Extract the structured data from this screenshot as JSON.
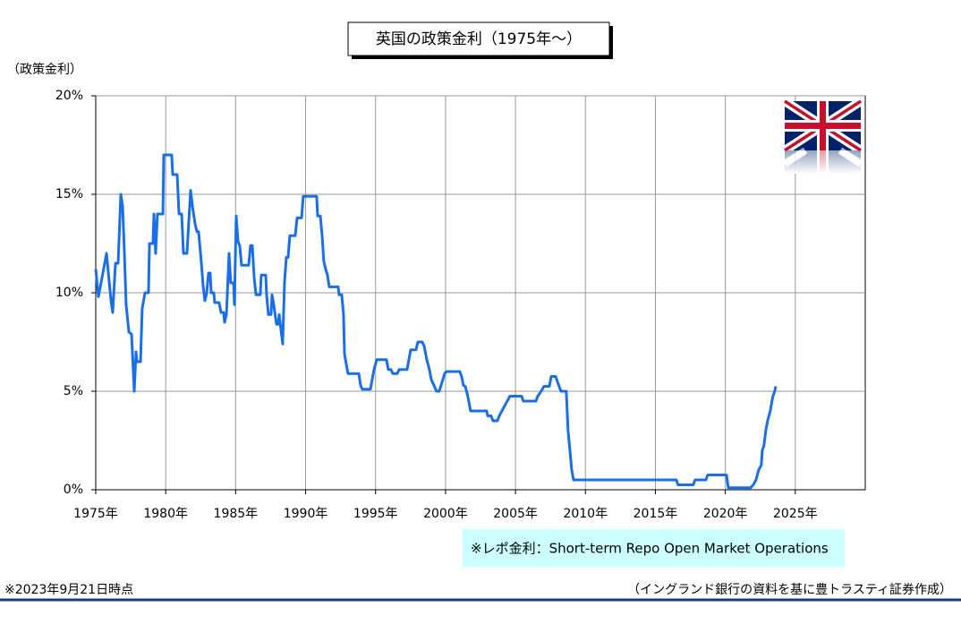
{
  "chart_data": {
    "type": "line",
    "title": "英国の政策金利（1975年～）",
    "y_label": "（政策金利）",
    "annotation": "※レポ金利：Short-term Repo Open Market Operations",
    "footnote": "※2023年9月21日時点",
    "source": "（イングランド銀行の資料を基に豊トラスティ証券作成）",
    "color": "#1a6fe8",
    "grid": true,
    "xlim": [
      1975,
      2030
    ],
    "xticks": [
      {
        "value": 1975,
        "label": "1975年"
      },
      {
        "value": 1980,
        "label": "1980年"
      },
      {
        "value": 1985,
        "label": "1985年"
      },
      {
        "value": 1990,
        "label": "1990年"
      },
      {
        "value": 1995,
        "label": "1995年"
      },
      {
        "value": 2000,
        "label": "2000年"
      },
      {
        "value": 2005,
        "label": "2005年"
      },
      {
        "value": 2010,
        "label": "2010年"
      },
      {
        "value": 2015,
        "label": "2015年"
      },
      {
        "value": 2020,
        "label": "2020年"
      },
      {
        "value": 2025,
        "label": "2025年"
      }
    ],
    "ylim": [
      0,
      20
    ],
    "yticks": [
      {
        "value": 0,
        "label": "0%"
      },
      {
        "value": 5,
        "label": "5%"
      },
      {
        "value": 10,
        "label": "10%"
      },
      {
        "value": 15,
        "label": "15%"
      },
      {
        "value": 20,
        "label": "20%"
      }
    ],
    "x": [
      1975.0,
      1975.19,
      1975.51,
      1975.77,
      1976.09,
      1976.21,
      1976.41,
      1976.6,
      1976.79,
      1976.92,
      1977.05,
      1977.17,
      1977.37,
      1977.56,
      1977.75,
      1977.88,
      1977.94,
      1978.2,
      1978.32,
      1978.52,
      1978.77,
      1978.84,
      1979.09,
      1979.16,
      1979.28,
      1979.41,
      1979.8,
      1979.86,
      1980.43,
      1980.5,
      1980.82,
      1980.95,
      1981.14,
      1981.27,
      1981.52,
      1981.78,
      1981.91,
      1982.1,
      1982.23,
      1982.35,
      1982.54,
      1982.67,
      1982.8,
      1982.93,
      1983.06,
      1983.18,
      1983.25,
      1983.44,
      1983.5,
      1983.82,
      1983.95,
      1984.14,
      1984.21,
      1984.34,
      1984.53,
      1984.65,
      1984.85,
      1984.91,
      1985.04,
      1985.17,
      1985.29,
      1985.42,
      1985.93,
      1986.06,
      1986.19,
      1986.32,
      1986.45,
      1986.76,
      1986.83,
      1987.15,
      1987.21,
      1987.34,
      1987.53,
      1987.6,
      1987.72,
      1987.92,
      1988.04,
      1988.11,
      1988.24,
      1988.36,
      1988.49,
      1988.62,
      1988.75,
      1988.87,
      1989.26,
      1989.39,
      1989.71,
      1989.83,
      1990.79,
      1990.86,
      1991.05,
      1991.18,
      1991.3,
      1991.43,
      1991.56,
      1991.69,
      1992.33,
      1992.39,
      1992.58,
      1992.71,
      1992.78,
      1992.9,
      1993.03,
      1993.8,
      1993.93,
      1994.05,
      1994.63,
      1994.76,
      1994.89,
      1995.08,
      1995.78,
      1995.91,
      1996.1,
      1996.23,
      1996.55,
      1996.68,
      1997.25,
      1997.38,
      1997.51,
      1997.89,
      1998.02,
      1998.34,
      1998.47,
      1998.66,
      1998.85,
      1998.98,
      1999.17,
      1999.36,
      1999.55,
      1999.68,
      1999.81,
      1999.94,
      2000.07,
      2001.02,
      2001.15,
      2001.28,
      2001.41,
      2001.54,
      2001.66,
      2001.79,
      2002.94,
      2003.01,
      2003.26,
      2003.39,
      2003.71,
      2003.84,
      2004.03,
      2004.22,
      2004.41,
      2004.6,
      2005.44,
      2005.56,
      2006.46,
      2006.59,
      2006.84,
      2007.03,
      2007.42,
      2007.55,
      2007.87,
      2007.99,
      2008.25,
      2008.63,
      2008.76,
      2008.89,
      2009.02,
      2009.15,
      2016.5,
      2016.62,
      2017.71,
      2017.84,
      2018.61,
      2018.74,
      2020.08,
      2020.21,
      2021.8,
      2022.0,
      2022.19,
      2022.38,
      2022.57,
      2022.64,
      2022.76,
      2022.89,
      2023.02,
      2023.21,
      2023.27,
      2023.4,
      2023.53,
      2023.6
    ],
    "values": [
      11.2,
      9.8,
      11.0,
      12.0,
      9.6,
      9.0,
      11.5,
      11.5,
      15.0,
      14.4,
      12.0,
      9.4,
      8.0,
      7.9,
      5.0,
      7.0,
      6.5,
      6.5,
      9.2,
      10.0,
      10.0,
      12.5,
      12.5,
      14.0,
      12.0,
      14.0,
      14.0,
      17.0,
      17.0,
      16.0,
      16.0,
      14.0,
      14.0,
      12.0,
      12.0,
      15.2,
      14.4,
      13.5,
      13.1,
      13.1,
      11.6,
      10.4,
      9.6,
      10.0,
      11.0,
      11.0,
      10.0,
      10.0,
      9.5,
      9.5,
      9.0,
      9.0,
      8.5,
      8.9,
      12.0,
      10.5,
      10.5,
      9.4,
      13.9,
      12.6,
      12.4,
      11.4,
      11.4,
      12.4,
      12.4,
      10.8,
      9.9,
      9.9,
      10.9,
      10.9,
      9.9,
      8.9,
      8.9,
      9.9,
      9.4,
      8.4,
      8.4,
      8.9,
      8.1,
      7.4,
      10.5,
      11.8,
      11.8,
      12.9,
      12.9,
      13.8,
      13.8,
      14.9,
      14.9,
      13.9,
      13.9,
      12.9,
      11.6,
      11.2,
      10.9,
      10.3,
      10.3,
      9.9,
      9.9,
      8.9,
      6.9,
      6.4,
      5.9,
      5.9,
      5.3,
      5.1,
      5.1,
      5.6,
      6.1,
      6.6,
      6.6,
      6.1,
      6.1,
      5.9,
      5.9,
      6.1,
      6.1,
      6.6,
      7.1,
      7.1,
      7.5,
      7.5,
      7.3,
      6.6,
      6.1,
      5.6,
      5.3,
      5.0,
      5.0,
      5.3,
      5.6,
      5.9,
      6.0,
      6.0,
      5.75,
      5.3,
      5.25,
      4.9,
      4.5,
      4.0,
      4.0,
      3.75,
      3.75,
      3.5,
      3.5,
      3.75,
      4.0,
      4.25,
      4.5,
      4.75,
      4.75,
      4.5,
      4.5,
      4.75,
      5.0,
      5.25,
      5.25,
      5.75,
      5.75,
      5.5,
      5.0,
      5.0,
      3.0,
      2.0,
      1.0,
      0.5,
      0.5,
      0.25,
      0.25,
      0.5,
      0.5,
      0.75,
      0.75,
      0.1,
      0.1,
      0.25,
      0.5,
      1.0,
      1.25,
      2.0,
      2.25,
      3.0,
      3.5,
      4.0,
      4.25,
      4.75,
      5.0,
      5.25
    ]
  }
}
